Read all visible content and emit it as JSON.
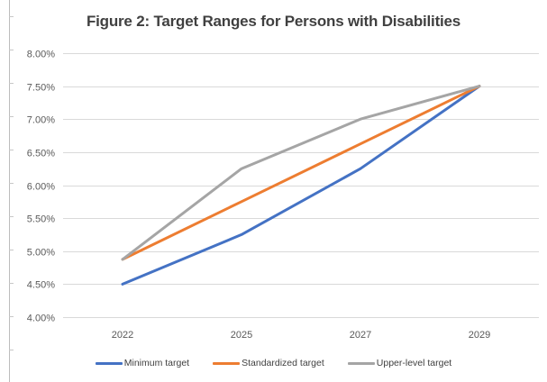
{
  "chart_data": {
    "type": "line",
    "title": "Figure 2: Target Ranges for Persons with Disabilities",
    "xlabel": "",
    "ylabel": "",
    "categories": [
      "2022",
      "2025",
      "2027",
      "2029"
    ],
    "ylim": [
      0.04,
      0.08
    ],
    "yticks": [
      0.04,
      0.045,
      0.05,
      0.055,
      0.06,
      0.065,
      0.07,
      0.075,
      0.08
    ],
    "ytick_labels": [
      "4.00%",
      "4.50%",
      "5.00%",
      "5.50%",
      "6.00%",
      "6.50%",
      "7.00%",
      "7.50%",
      "8.00%"
    ],
    "grid": true,
    "legend_position": "bottom",
    "series": [
      {
        "name": "Minimum target",
        "color": "#4472C4",
        "values": [
          0.045,
          0.0525,
          0.0625,
          0.075
        ]
      },
      {
        "name": "Standardized target",
        "color": "#ED7D31",
        "values": [
          0.04875,
          0.0575,
          0.06625,
          0.075
        ]
      },
      {
        "name": "Upper-level target",
        "color": "#A5A5A5",
        "values": [
          0.04875,
          0.0625,
          0.07,
          0.075
        ]
      }
    ]
  }
}
